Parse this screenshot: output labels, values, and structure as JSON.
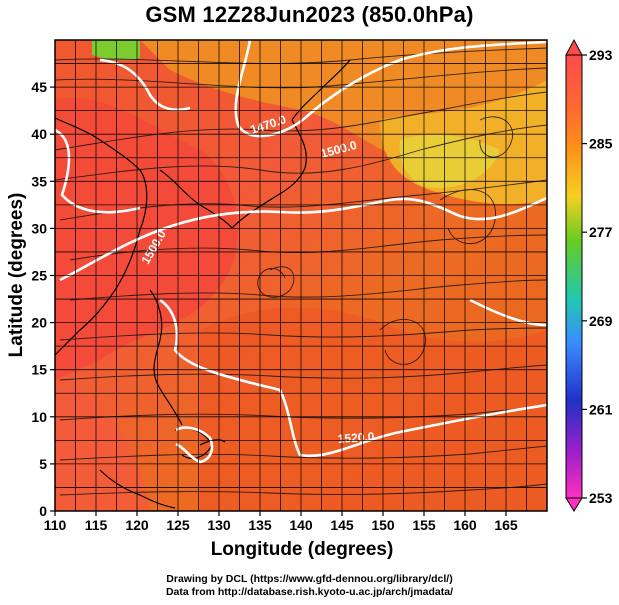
{
  "title": "GSM 12Z28Jun2023 (850.0hPa)",
  "x_axis": {
    "title": "Longitude (degrees)",
    "ticks": [
      "110",
      "115",
      "120",
      "125",
      "130",
      "135",
      "140",
      "145",
      "150",
      "155",
      "160",
      "165"
    ]
  },
  "y_axis": {
    "title": "Latitude  (degrees)",
    "ticks": [
      "0",
      "5",
      "10",
      "15",
      "20",
      "25",
      "30",
      "35",
      "40",
      "45"
    ]
  },
  "colorbar": {
    "labels": [
      "293",
      "285",
      "277",
      "269",
      "261",
      "253"
    ],
    "colors": [
      "#ff4a4a",
      "#ff7f2a",
      "#f0c820",
      "#66cc22",
      "#22c8b0",
      "#3a8cff",
      "#2030c8",
      "#a020c8",
      "#ff30c0"
    ]
  },
  "contour_labels": [
    "1470.0",
    "1500.0",
    "1500.0",
    "1520.0"
  ],
  "footer": {
    "line1": "Drawing by DCL (https://www.gfd-dennou.org/library/dcl/)",
    "line2": "Data from http://database.rish.kyoto-u.ac.jp/arch/jmadata/"
  },
  "chart_data": {
    "type": "heatmap",
    "title": "GSM 12Z28Jun2023 (850.0hPa)",
    "xlabel": "Longitude (degrees)",
    "ylabel": "Latitude  (degrees)",
    "xlim": [
      110,
      170
    ],
    "ylim": [
      0,
      50
    ],
    "color_range": [
      253,
      293
    ],
    "overlays": [
      "streamlines",
      "geopotential height contours",
      "coastlines"
    ],
    "contour_values": [
      1470.0,
      1500.0,
      1520.0
    ]
  }
}
